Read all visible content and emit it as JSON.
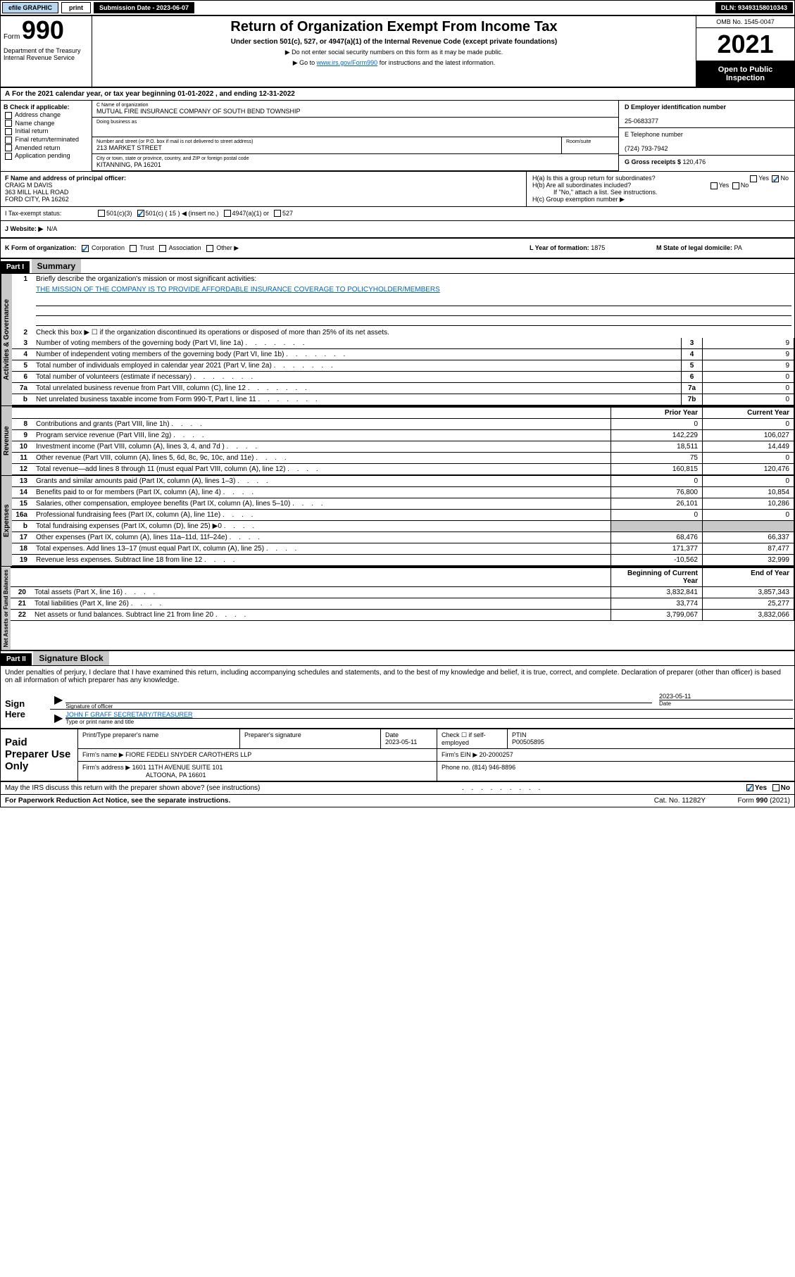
{
  "topbar": {
    "efile": "efile GRAPHIC",
    "print": "print",
    "submission": "Submission Date - 2023-06-07",
    "dln": "DLN: 93493158010343"
  },
  "header": {
    "form_label": "Form",
    "form_num": "990",
    "title": "Return of Organization Exempt From Income Tax",
    "sub1": "Under section 501(c), 527, or 4947(a)(1) of the Internal Revenue Code (except private foundations)",
    "sub2": "▶ Do not enter social security numbers on this form as it may be made public.",
    "sub3_pre": "▶ Go to ",
    "sub3_link": "www.irs.gov/Form990",
    "sub3_post": " for instructions and the latest information.",
    "dept": "Department of the Treasury\nInternal Revenue Service",
    "omb": "OMB No. 1545-0047",
    "year": "2021",
    "open": "Open to Public Inspection"
  },
  "sectionA": "For the 2021 calendar year, or tax year beginning 01-01-2022    , and ending 12-31-2022",
  "colB": {
    "label": "B Check if applicable:",
    "items": [
      "Address change",
      "Name change",
      "Initial return",
      "Final return/terminated",
      "Amended return",
      "Application pending"
    ]
  },
  "colC": {
    "name_lbl": "C Name of organization",
    "name": "MUTUAL FIRE INSURANCE COMPANY OF SOUTH BEND TOWNSHIP",
    "dba_lbl": "Doing business as",
    "addr_lbl": "Number and street (or P.O. box if mail is not delivered to street address)",
    "addr": "213 MARKET STREET",
    "room_lbl": "Room/suite",
    "city_lbl": "City or town, state or province, country, and ZIP or foreign postal code",
    "city": "KITANNING, PA   16201"
  },
  "colD": {
    "ein_lbl": "D Employer identification number",
    "ein": "25-0683377",
    "tel_lbl": "E Telephone number",
    "tel": "(724) 793-7942",
    "gross_lbl": "G Gross receipts $ ",
    "gross": "120,476"
  },
  "rowF": {
    "lbl": "F  Name and address of principal officer:",
    "name": "CRAIG M DAVIS",
    "addr1": "363 MILL HALL ROAD",
    "addr2": "FORD CITY, PA  16262"
  },
  "rowH": {
    "ha": "H(a)  Is this a group return for subordinates?",
    "hb": "H(b)  Are all subordinates included?",
    "hb_note": "If \"No,\" attach a list. See instructions.",
    "hc": "H(c)  Group exemption number ▶"
  },
  "rowI": {
    "lbl": "I    Tax-exempt status:",
    "opt1": "501(c)(3)",
    "opt2": "501(c) ( 15 ) ◀ (insert no.)",
    "opt3": "4947(a)(1) or",
    "opt4": "527"
  },
  "rowJ": {
    "lbl": "J    Website: ▶",
    "val": "N/A"
  },
  "rowK": {
    "lbl": "K Form of organization:",
    "opts": [
      "Corporation",
      "Trust",
      "Association",
      "Other ▶"
    ]
  },
  "rowL": {
    "lbl": "L Year of formation: ",
    "val": "1875"
  },
  "rowM": {
    "lbl": "M State of legal domicile: ",
    "val": "PA"
  },
  "part1": {
    "hdr": "Part I",
    "title": "Summary"
  },
  "summary": {
    "line1_lbl": "Briefly describe the organization's mission or most significant activities:",
    "line1_val": "THE MISSION OF THE COMPANY IS TO PROVIDE AFFORDABLE INSURANCE COVERAGE TO POLICYHOLDER/MEMBERS",
    "line2": "Check this box ▶ ☐ if the organization discontinued its operations or disposed of more than 25% of its net assets.",
    "rows_gov": [
      {
        "n": "3",
        "t": "Number of voting members of the governing body (Part VI, line 1a)",
        "r": "3",
        "v": "9"
      },
      {
        "n": "4",
        "t": "Number of independent voting members of the governing body (Part VI, line 1b)",
        "r": "4",
        "v": "9"
      },
      {
        "n": "5",
        "t": "Total number of individuals employed in calendar year 2021 (Part V, line 2a)",
        "r": "5",
        "v": "9"
      },
      {
        "n": "6",
        "t": "Total number of volunteers (estimate if necessary)",
        "r": "6",
        "v": "0"
      },
      {
        "n": "7a",
        "t": "Total unrelated business revenue from Part VIII, column (C), line 12",
        "r": "7a",
        "v": "0"
      },
      {
        "n": "b",
        "t": "Net unrelated business taxable income from Form 990-T, Part I, line 11",
        "r": "7b",
        "v": "0"
      }
    ],
    "col_hdr_prior": "Prior Year",
    "col_hdr_curr": "Current Year",
    "rows_rev": [
      {
        "n": "8",
        "t": "Contributions and grants (Part VIII, line 1h)",
        "p": "0",
        "c": "0"
      },
      {
        "n": "9",
        "t": "Program service revenue (Part VIII, line 2g)",
        "p": "142,229",
        "c": "106,027"
      },
      {
        "n": "10",
        "t": "Investment income (Part VIII, column (A), lines 3, 4, and 7d )",
        "p": "18,511",
        "c": "14,449"
      },
      {
        "n": "11",
        "t": "Other revenue (Part VIII, column (A), lines 5, 6d, 8c, 9c, 10c, and 11e)",
        "p": "75",
        "c": "0"
      },
      {
        "n": "12",
        "t": "Total revenue—add lines 8 through 11 (must equal Part VIII, column (A), line 12)",
        "p": "160,815",
        "c": "120,476"
      }
    ],
    "rows_exp": [
      {
        "n": "13",
        "t": "Grants and similar amounts paid (Part IX, column (A), lines 1–3)",
        "p": "0",
        "c": "0"
      },
      {
        "n": "14",
        "t": "Benefits paid to or for members (Part IX, column (A), line 4)",
        "p": "76,800",
        "c": "10,854"
      },
      {
        "n": "15",
        "t": "Salaries, other compensation, employee benefits (Part IX, column (A), lines 5–10)",
        "p": "26,101",
        "c": "10,286"
      },
      {
        "n": "16a",
        "t": "Professional fundraising fees (Part IX, column (A), line 11e)",
        "p": "0",
        "c": "0"
      },
      {
        "n": "b",
        "t": "Total fundraising expenses (Part IX, column (D), line 25) ▶0",
        "p": "",
        "c": "",
        "shaded": true
      },
      {
        "n": "17",
        "t": "Other expenses (Part IX, column (A), lines 11a–11d, 11f–24e)",
        "p": "68,476",
        "c": "66,337"
      },
      {
        "n": "18",
        "t": "Total expenses. Add lines 13–17 (must equal Part IX, column (A), line 25)",
        "p": "171,377",
        "c": "87,477"
      },
      {
        "n": "19",
        "t": "Revenue less expenses. Subtract line 18 from line 12",
        "p": "-10,562",
        "c": "32,999"
      }
    ],
    "col_hdr_beg": "Beginning of Current Year",
    "col_hdr_end": "End of Year",
    "rows_net": [
      {
        "n": "20",
        "t": "Total assets (Part X, line 16)",
        "p": "3,832,841",
        "c": "3,857,343"
      },
      {
        "n": "21",
        "t": "Total liabilities (Part X, line 26)",
        "p": "33,774",
        "c": "25,277"
      },
      {
        "n": "22",
        "t": "Net assets or fund balances. Subtract line 21 from line 20",
        "p": "3,799,067",
        "c": "3,832,066"
      }
    ]
  },
  "part2": {
    "hdr": "Part II",
    "title": "Signature Block"
  },
  "sig": {
    "decl": "Under penalties of perjury, I declare that I have examined this return, including accompanying schedules and statements, and to the best of my knowledge and belief, it is true, correct, and complete. Declaration of preparer (other than officer) is based on all information of which preparer has any knowledge.",
    "sign_here": "Sign Here",
    "sig_officer": "Signature of officer",
    "date_lbl": "Date",
    "date": "2023-05-11",
    "name": "JOHN F GRAFF  SECRETARY/TREASURER",
    "type_lbl": "Type or print name and title"
  },
  "prep": {
    "lbl": "Paid Preparer Use Only",
    "h1": "Print/Type preparer's name",
    "h2": "Preparer's signature",
    "h3": "Date",
    "h3v": "2023-05-11",
    "h4": "Check ☐ if self-employed",
    "h5": "PTIN",
    "h5v": "P00505895",
    "firm_lbl": "Firm's name     ▶",
    "firm": "FIORE FEDELI SNYDER CAROTHERS LLP",
    "ein_lbl": "Firm's EIN ▶",
    "ein": "20-2000257",
    "addr_lbl": "Firm's address ▶",
    "addr1": "1601 11TH AVENUE SUITE 101",
    "addr2": "ALTOONA, PA  16601",
    "phone_lbl": "Phone no. ",
    "phone": "(814) 946-8896"
  },
  "footer": {
    "may": "May the IRS discuss this return with the preparer shown above? (see instructions)",
    "pra": "For Paperwork Reduction Act Notice, see the separate instructions.",
    "cat": "Cat. No. 11282Y",
    "form": "Form 990 (2021)"
  },
  "labels": {
    "vert_gov": "Activities & Governance",
    "vert_rev": "Revenue",
    "vert_exp": "Expenses",
    "vert_net": "Net Assets or Fund Balances",
    "yes": "Yes",
    "no": "No"
  }
}
